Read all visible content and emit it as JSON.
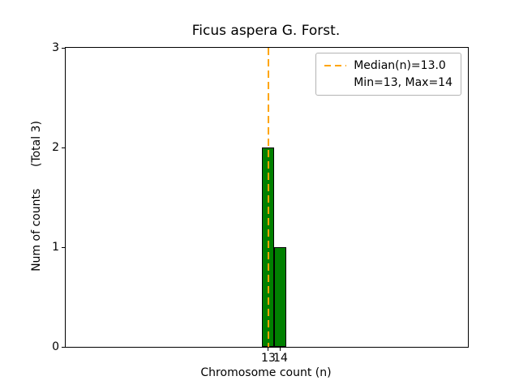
{
  "chart_data": {
    "type": "bar",
    "title": "Ficus aspera G. Forst.",
    "xlabel": "Chromosome count (n)",
    "ylabel": "Num of counts      (Total 3)",
    "categories": [
      13,
      14
    ],
    "values": [
      2,
      1
    ],
    "total": 3,
    "bar_width": 1,
    "bar_color": "#008000",
    "bar_edge_color": "#000000",
    "xlim": [
      -3.63,
      29.37
    ],
    "ylim": [
      0,
      3
    ],
    "xticks": [
      13,
      14
    ],
    "yticks": [
      0,
      1,
      2,
      3
    ],
    "grid": false,
    "median_line": {
      "x": 13.0,
      "color": "#FFA500",
      "style": "dashed"
    },
    "legend": {
      "position": "top-right",
      "entries": [
        {
          "label": "Median(n)=13.0",
          "marker": "dashed-line",
          "color": "#FFA500"
        },
        {
          "label": "Min=13, Max=14",
          "marker": "none"
        }
      ]
    }
  }
}
